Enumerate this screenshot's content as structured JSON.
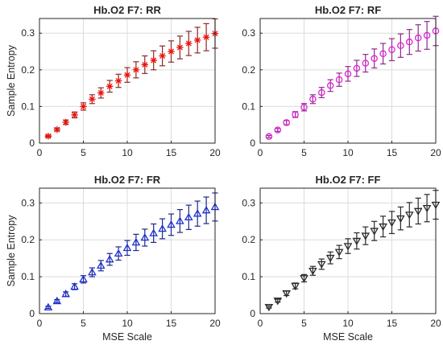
{
  "figure": {
    "xlabel": "MSE Scale",
    "ylabel": "Sample Entropy"
  },
  "chart_data": [
    {
      "type": "scatter",
      "title": "Hb.O2 F7: RR",
      "marker": "asterisk",
      "color": "#e8140c",
      "errorbar_color": "#8b2a2a",
      "xlabel": "",
      "ylabel": "Sample Entropy",
      "xlim": [
        0,
        20
      ],
      "ylim": [
        0,
        0.34
      ],
      "xticks": [
        "0",
        "5",
        "10",
        "15",
        "20"
      ],
      "yticks": [
        "0",
        "0.1",
        "0.2",
        "0.3"
      ],
      "grid": true,
      "x": [
        1,
        2,
        3,
        4,
        5,
        6,
        7,
        8,
        9,
        10,
        11,
        12,
        13,
        14,
        15,
        16,
        17,
        18,
        19,
        20
      ],
      "y": [
        0.019,
        0.037,
        0.057,
        0.077,
        0.1,
        0.12,
        0.137,
        0.155,
        0.17,
        0.186,
        0.2,
        0.214,
        0.226,
        0.238,
        0.25,
        0.261,
        0.272,
        0.281,
        0.289,
        0.299
      ],
      "err": [
        0.003,
        0.004,
        0.006,
        0.008,
        0.01,
        0.012,
        0.014,
        0.016,
        0.018,
        0.02,
        0.022,
        0.024,
        0.026,
        0.027,
        0.029,
        0.031,
        0.033,
        0.035,
        0.037,
        0.04
      ]
    },
    {
      "type": "scatter",
      "title": "Hb.O2 F7: RF",
      "marker": "circle",
      "color": "#e020d8",
      "errorbar_color": "#8e2b8e",
      "xlabel": "",
      "ylabel": "",
      "xlim": [
        0,
        20
      ],
      "ylim": [
        0,
        0.34
      ],
      "xticks": [
        "0",
        "5",
        "10",
        "15",
        "20"
      ],
      "yticks": [
        "0",
        "0.1",
        "0.2",
        "0.3"
      ],
      "grid": true,
      "x": [
        1,
        2,
        3,
        4,
        5,
        6,
        7,
        8,
        9,
        10,
        11,
        12,
        13,
        14,
        15,
        16,
        17,
        18,
        19,
        20
      ],
      "y": [
        0.018,
        0.036,
        0.056,
        0.078,
        0.098,
        0.12,
        0.138,
        0.157,
        0.173,
        0.189,
        0.204,
        0.218,
        0.231,
        0.244,
        0.255,
        0.266,
        0.276,
        0.287,
        0.294,
        0.306
      ],
      "err": [
        0.003,
        0.004,
        0.006,
        0.008,
        0.01,
        0.012,
        0.014,
        0.016,
        0.018,
        0.02,
        0.022,
        0.024,
        0.026,
        0.028,
        0.03,
        0.032,
        0.034,
        0.036,
        0.038,
        0.04
      ]
    },
    {
      "type": "scatter",
      "title": "Hb.O2 F7: FR",
      "marker": "triangle-up",
      "color": "#1c2fd6",
      "errorbar_color": "#1c2a86",
      "xlabel": "MSE Scale",
      "ylabel": "Sample Entropy",
      "xlim": [
        0,
        20
      ],
      "ylim": [
        0,
        0.34
      ],
      "xticks": [
        "0",
        "5",
        "10",
        "15",
        "20"
      ],
      "yticks": [
        "0",
        "0.1",
        "0.2",
        "0.3"
      ],
      "grid": true,
      "x": [
        1,
        2,
        3,
        4,
        5,
        6,
        7,
        8,
        9,
        10,
        11,
        12,
        13,
        14,
        15,
        16,
        17,
        18,
        19,
        20
      ],
      "y": [
        0.017,
        0.034,
        0.053,
        0.073,
        0.093,
        0.112,
        0.13,
        0.147,
        0.163,
        0.178,
        0.193,
        0.206,
        0.218,
        0.23,
        0.241,
        0.251,
        0.261,
        0.271,
        0.28,
        0.289
      ],
      "err": [
        0.003,
        0.004,
        0.006,
        0.008,
        0.01,
        0.012,
        0.014,
        0.016,
        0.018,
        0.02,
        0.022,
        0.023,
        0.025,
        0.027,
        0.029,
        0.031,
        0.033,
        0.034,
        0.036,
        0.038
      ]
    },
    {
      "type": "scatter",
      "title": "Hb.O2 F7: FF",
      "marker": "triangle-down",
      "color": "#2a2a2a",
      "errorbar_color": "#2a2a2a",
      "xlabel": "MSE Scale",
      "ylabel": "",
      "xlim": [
        0,
        20
      ],
      "ylim": [
        0,
        0.34
      ],
      "xticks": [
        "0",
        "5",
        "10",
        "15",
        "20"
      ],
      "yticks": [
        "0",
        "0.1",
        "0.2",
        "0.3"
      ],
      "grid": true,
      "x": [
        1,
        2,
        3,
        4,
        5,
        6,
        7,
        8,
        9,
        10,
        11,
        12,
        13,
        14,
        15,
        16,
        17,
        18,
        19,
        20
      ],
      "y": [
        0.018,
        0.035,
        0.055,
        0.075,
        0.096,
        0.116,
        0.134,
        0.151,
        0.167,
        0.183,
        0.197,
        0.211,
        0.224,
        0.236,
        0.247,
        0.258,
        0.268,
        0.278,
        0.286,
        0.295
      ],
      "err": [
        0.003,
        0.004,
        0.006,
        0.008,
        0.01,
        0.012,
        0.014,
        0.016,
        0.018,
        0.02,
        0.022,
        0.024,
        0.026,
        0.028,
        0.03,
        0.031,
        0.033,
        0.035,
        0.037,
        0.039
      ]
    }
  ]
}
